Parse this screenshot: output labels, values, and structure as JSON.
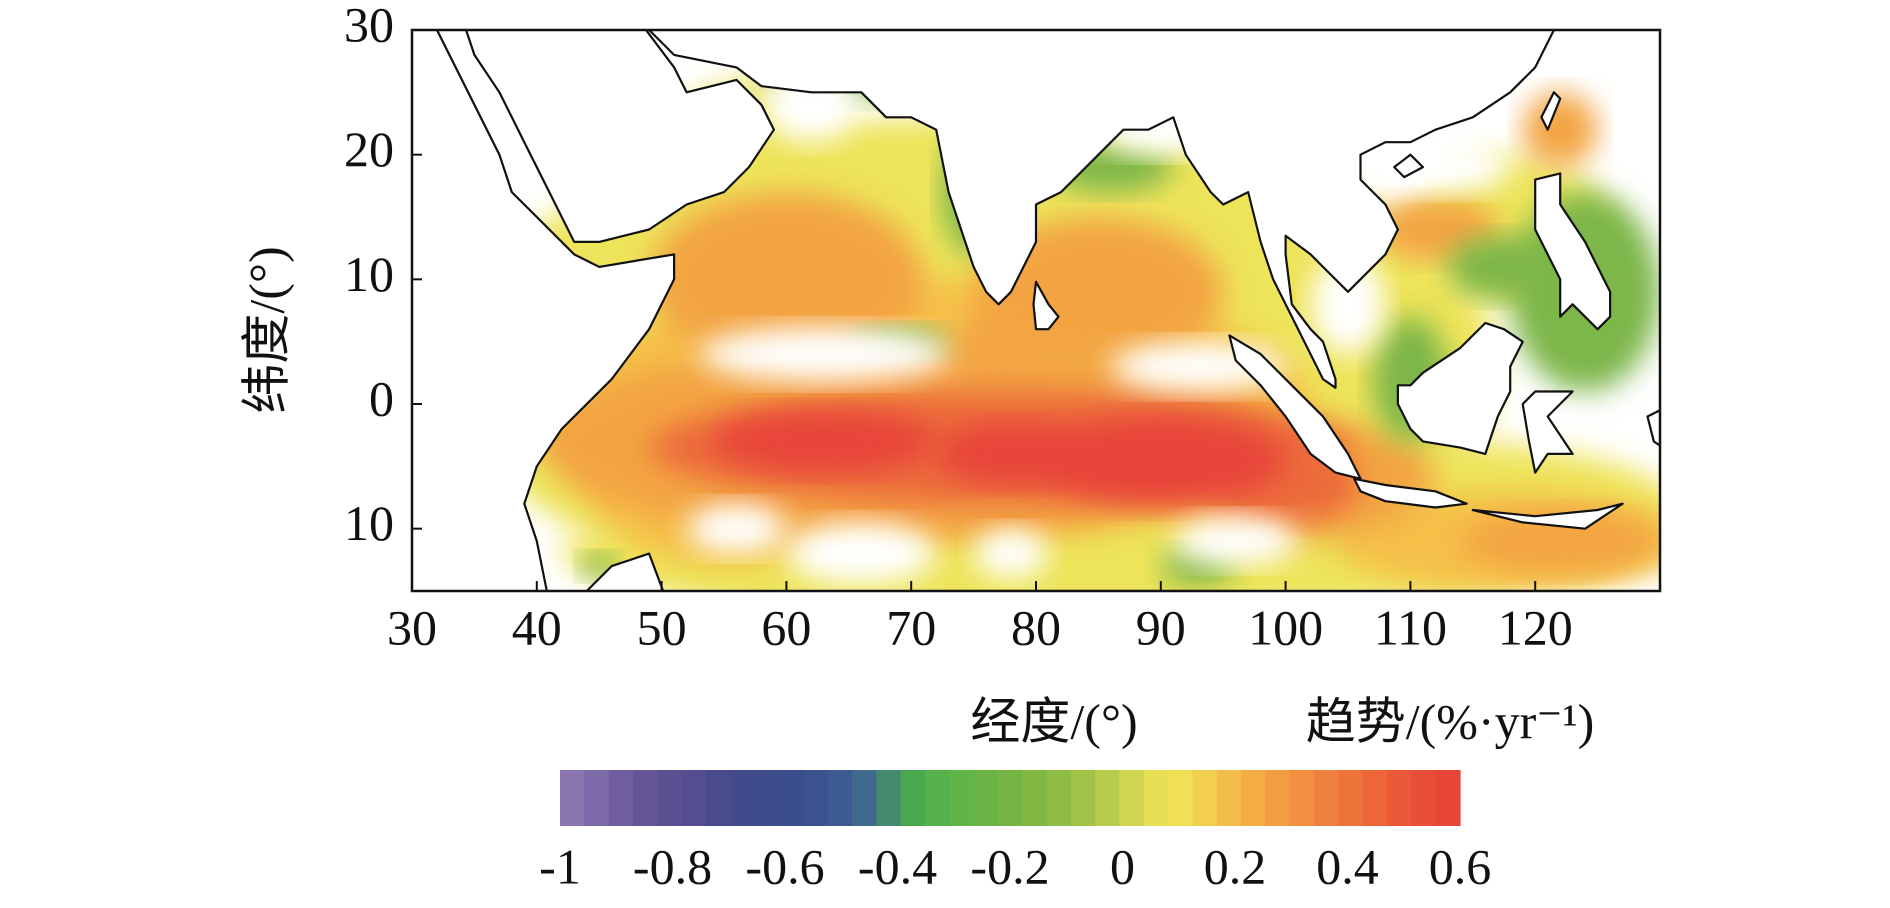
{
  "chart_data": {
    "type": "map",
    "xlabel": "经度/(°)",
    "ylabel": "纬度/(°)",
    "xlim": [
      30,
      130
    ],
    "ylim": [
      -15,
      30
    ],
    "xticks": [
      30,
      40,
      50,
      60,
      70,
      80,
      90,
      100,
      110,
      120
    ],
    "yticks": [
      30,
      20,
      10,
      0,
      {
        "value": -10,
        "label": "10"
      }
    ],
    "colorbar": {
      "label": "趋势/(%·yr⁻¹)",
      "lim": [
        -1,
        0.6
      ],
      "ticks": [
        -1,
        -0.8,
        -0.6,
        -0.4,
        -0.2,
        0,
        0.2,
        0.4,
        0.6
      ],
      "colors": [
        "#8a77b0",
        "#7d6aa8",
        "#6f5d9f",
        "#645598",
        "#5c5093",
        "#544d90",
        "#4a4b8d",
        "#434a8b",
        "#3d4a8b",
        "#3a4c8c",
        "#3b528f",
        "#3d5a92",
        "#3f6a8e",
        "#448a6c",
        "#4aa94e",
        "#55b14a",
        "#5fb548",
        "#6ab446",
        "#74b545",
        "#80b843",
        "#8dbb44",
        "#a0c246",
        "#b8cc4b",
        "#d0d64f",
        "#e6de53",
        "#f0e055",
        "#f2d04f",
        "#f3bd4a",
        "#f4ac45",
        "#f39c42",
        "#f28f40",
        "#f0803d",
        "#ee733b",
        "#ed663a",
        "#eb5939",
        "#e94e38",
        "#e84538"
      ]
    }
  }
}
